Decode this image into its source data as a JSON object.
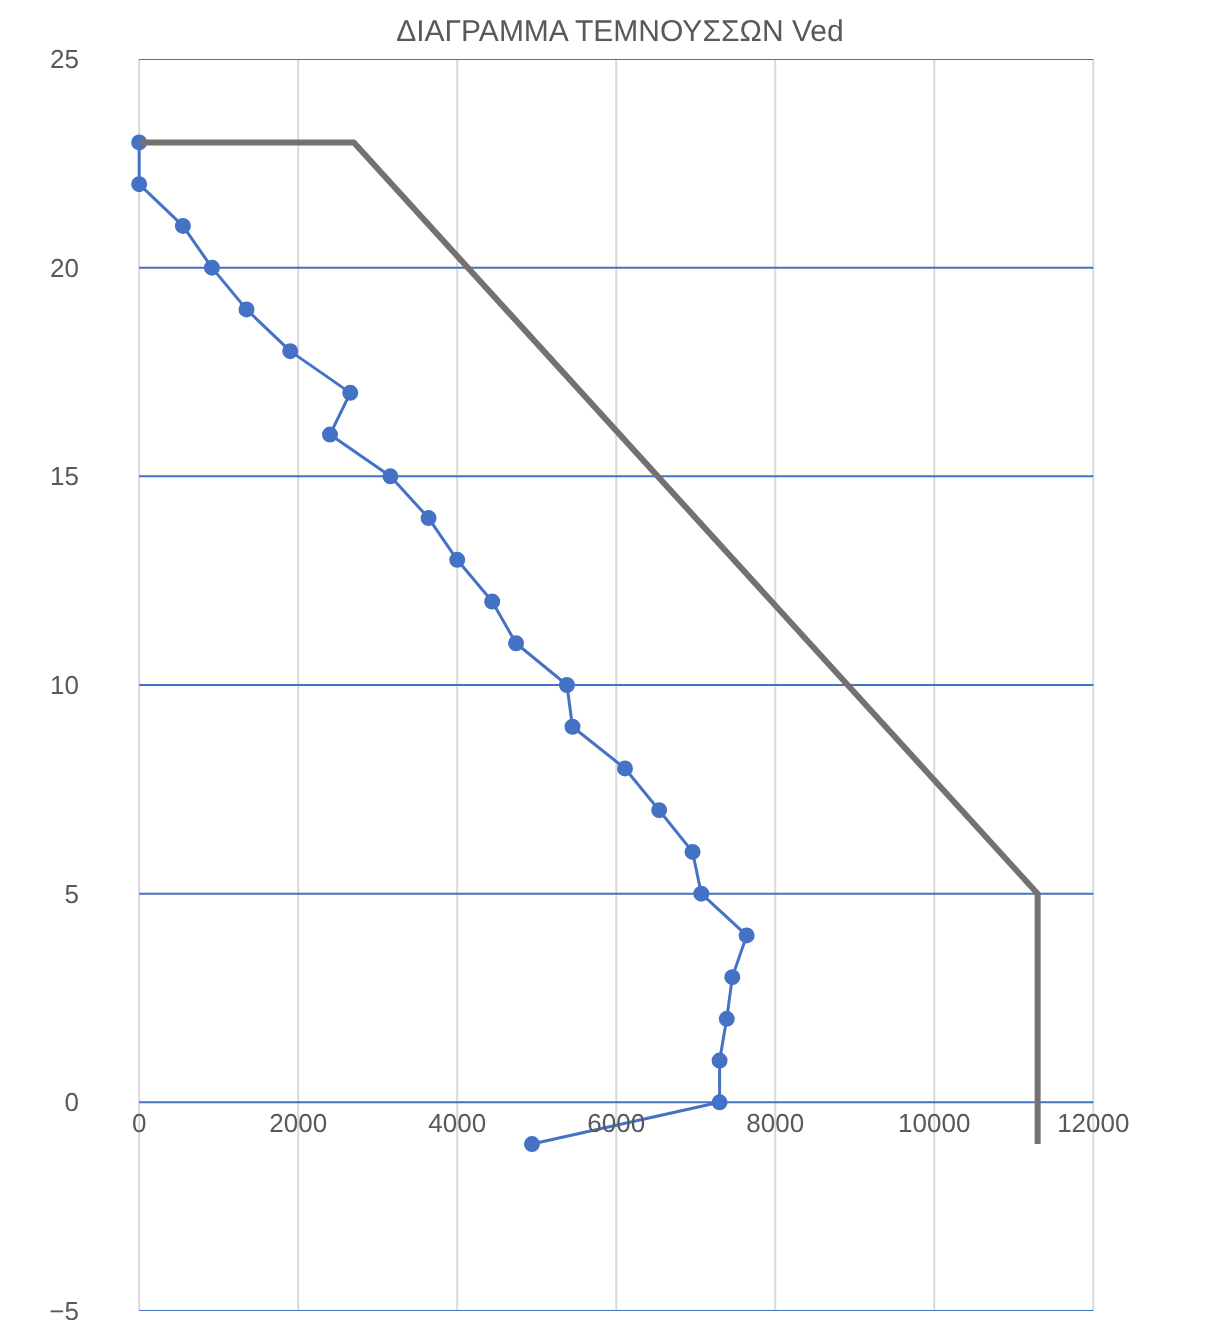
{
  "chart_data": {
    "type": "line",
    "title": "ΔΙΑΓΡΑΜΜΑ ΤΕΜΝΟΥΣΣΩΝ Ved",
    "xlim": [
      0,
      12000
    ],
    "xticks": [
      0,
      2000,
      4000,
      6000,
      8000,
      10000,
      12000
    ],
    "ylim": [
      -5,
      25
    ],
    "yticks": [
      -5,
      0,
      5,
      10,
      15,
      20,
      25
    ],
    "grid": true,
    "marker": "circle",
    "series": [
      {
        "color": "#4472c4",
        "x": [
          0,
          0,
          550,
          915,
          1350,
          1900,
          2655,
          2400,
          3160,
          3640,
          4000,
          4440,
          4740,
          5380,
          5450,
          6110,
          6540,
          6960,
          7070,
          7640,
          7460,
          7390,
          7300,
          7300,
          4940
        ],
        "values": [
          23,
          22,
          21,
          20,
          19,
          18,
          17,
          16,
          15,
          14,
          13,
          12,
          11,
          10,
          9,
          8,
          7,
          6,
          5,
          4,
          3,
          2,
          1,
          0,
          -1
        ]
      },
      {
        "color": "#767171",
        "marker": "none",
        "x": [
          0,
          2700,
          11300,
          11300
        ],
        "values": [
          23,
          23,
          5,
          -1
        ]
      }
    ]
  }
}
